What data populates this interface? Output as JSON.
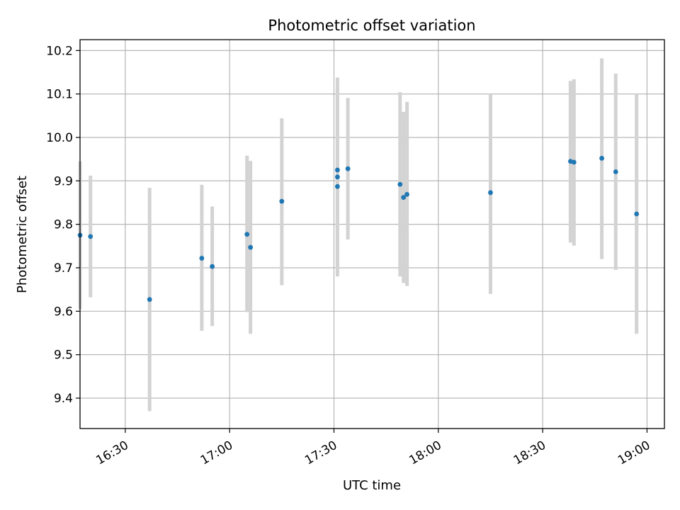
{
  "chart_data": {
    "type": "scatter",
    "title": "Photometric offset variation",
    "xlabel": "UTC time",
    "ylabel": "Photometric offset",
    "xlim": [
      "16:17",
      "19:05"
    ],
    "ylim": [
      9.33,
      10.225
    ],
    "grid": true,
    "x_ticks": [
      "16:30",
      "17:00",
      "17:30",
      "18:00",
      "18:30",
      "19:00"
    ],
    "y_ticks": [
      9.4,
      9.5,
      9.6,
      9.7,
      9.8,
      9.9,
      10.0,
      10.1,
      10.2
    ],
    "y_tick_labels": [
      "9.4",
      "9.5",
      "9.6",
      "9.7",
      "9.8",
      "9.9",
      "10.0",
      "10.1",
      "10.2"
    ],
    "colors": {
      "points": "#1f77b4",
      "errorbars": "#d3d3d3",
      "grid": "#b0b0b0"
    },
    "series": [
      {
        "points": [
          {
            "x": "16:17",
            "y": 9.775,
            "low": 9.605,
            "high": 9.945
          },
          {
            "x": "16:20",
            "y": 9.772,
            "low": 9.632,
            "high": 9.912
          },
          {
            "x": "16:37",
            "y": 9.627,
            "low": 9.37,
            "high": 9.884
          },
          {
            "x": "16:52",
            "y": 9.722,
            "low": 9.555,
            "high": 9.891
          },
          {
            "x": "16:55",
            "y": 9.703,
            "low": 9.566,
            "high": 9.841
          },
          {
            "x": "17:05",
            "y": 9.777,
            "low": 9.598,
            "high": 9.958
          },
          {
            "x": "17:06",
            "y": 9.747,
            "low": 9.548,
            "high": 9.946
          },
          {
            "x": "17:15",
            "y": 9.853,
            "low": 9.66,
            "high": 10.044
          },
          {
            "x": "17:31",
            "y": 9.887,
            "low": 9.68,
            "high": 10.098
          },
          {
            "x": "17:31",
            "y": 9.909,
            "low": 9.7,
            "high": 10.118
          },
          {
            "x": "17:31",
            "y": 9.925,
            "low": 9.71,
            "high": 10.138
          },
          {
            "x": "17:34",
            "y": 9.928,
            "low": 9.765,
            "high": 10.091
          },
          {
            "x": "17:49",
            "y": 9.892,
            "low": 9.68,
            "high": 10.104
          },
          {
            "x": "17:50",
            "y": 9.862,
            "low": 9.665,
            "high": 10.059
          },
          {
            "x": "17:51",
            "y": 9.869,
            "low": 9.658,
            "high": 10.082
          },
          {
            "x": "18:15",
            "y": 9.873,
            "low": 9.64,
            "high": 10.1
          },
          {
            "x": "18:38",
            "y": 9.945,
            "low": 9.758,
            "high": 10.13
          },
          {
            "x": "18:39",
            "y": 9.943,
            "low": 9.751,
            "high": 10.134
          },
          {
            "x": "18:47",
            "y": 9.952,
            "low": 9.72,
            "high": 10.182
          },
          {
            "x": "18:51",
            "y": 9.921,
            "low": 9.695,
            "high": 10.147
          },
          {
            "x": "18:57",
            "y": 9.824,
            "low": 9.548,
            "high": 10.1
          }
        ]
      }
    ]
  }
}
